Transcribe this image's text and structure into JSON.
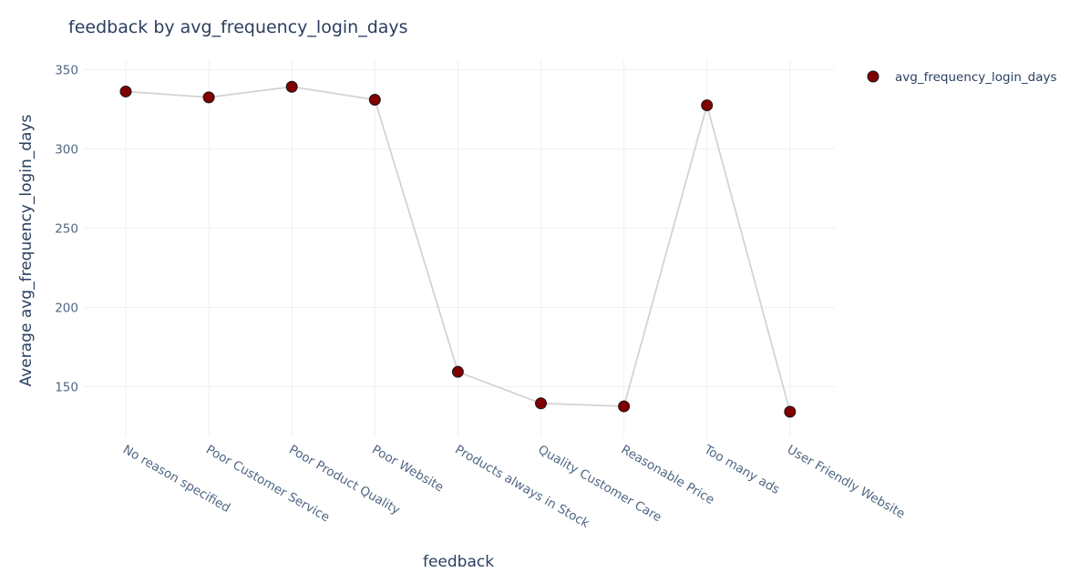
{
  "chart_data": {
    "type": "line",
    "title": "feedback by avg_frequency_login_days",
    "xlabel": "feedback",
    "ylabel": "Average avg_frequency_login_days",
    "categories": [
      "No reason specified",
      "Poor Customer Service",
      "Poor Product Quality",
      "Poor Website",
      "Products always in Stock",
      "Quality Customer Care",
      "Reasonable Price",
      "Too many ads",
      "User Friendly Website"
    ],
    "series": [
      {
        "name": "avg_frequency_login_days",
        "values": [
          336.2,
          332.5,
          339.2,
          331.0,
          159.3,
          139.4,
          137.5,
          327.5,
          134.1
        ]
      }
    ],
    "yticks": [
      "150",
      "200",
      "250",
      "300",
      "350"
    ],
    "ytick_values": [
      150,
      200,
      250,
      300,
      350
    ],
    "ylim": [
      118,
      356
    ],
    "grid": true,
    "legend_position": "top-right",
    "colors": {
      "marker": "#800000",
      "line": "#d3d3d3",
      "grid": "#ebf0f8",
      "text": "#2a3f5f",
      "tick_text": "#506784"
    }
  }
}
